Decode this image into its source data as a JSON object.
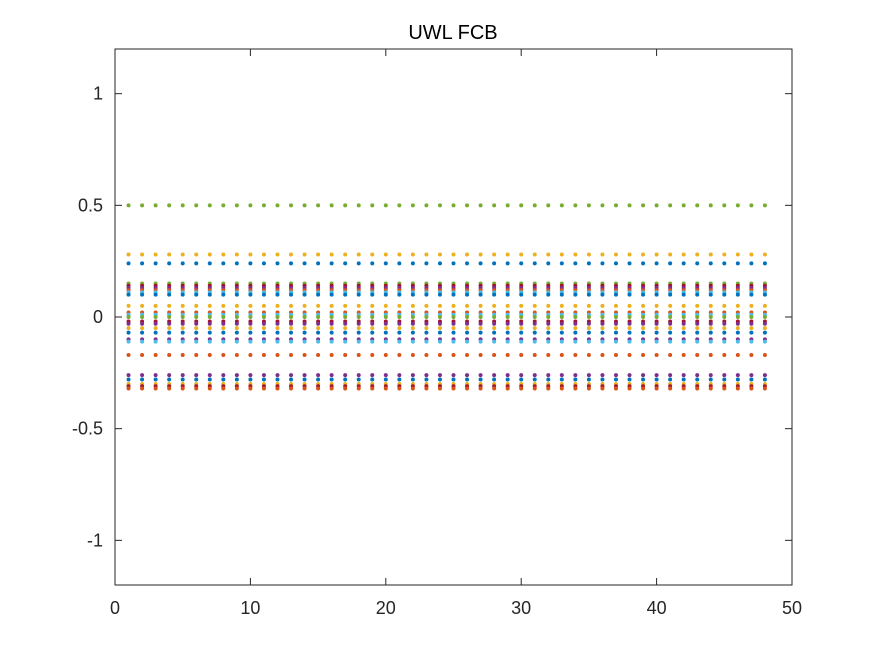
{
  "chart_data": {
    "type": "scatter",
    "title": "UWL FCB",
    "xlabel": "",
    "ylabel": "",
    "xlim": [
      0,
      50
    ],
    "ylim": [
      -1.2,
      1.2
    ],
    "xticks": [
      "0",
      "10",
      "20",
      "30",
      "40",
      "50"
    ],
    "yticks": [
      "-1",
      "-0.5",
      "0",
      "0.5",
      "1"
    ],
    "grid": false,
    "legend": "none",
    "x": [
      1,
      2,
      3,
      4,
      5,
      6,
      7,
      8,
      9,
      10,
      11,
      12,
      13,
      14,
      15,
      16,
      17,
      18,
      19,
      20,
      21,
      22,
      23,
      24,
      25,
      26,
      27,
      28,
      29,
      30,
      31,
      32,
      33,
      34,
      35,
      36,
      37,
      38,
      39,
      40,
      41,
      42,
      43,
      44,
      45,
      46,
      47,
      48
    ],
    "series": [
      {
        "color": "#77AC30",
        "y_constant": 0.5
      },
      {
        "color": "#EDB120",
        "y_constant": 0.28
      },
      {
        "color": "#0072BD",
        "y_constant": 0.24
      },
      {
        "color": "#77AC30",
        "y_constant": 0.15
      },
      {
        "color": "#A2142F",
        "y_constant": 0.14
      },
      {
        "color": "#7E2F8E",
        "y_constant": 0.13
      },
      {
        "color": "#D95319",
        "y_constant": 0.12
      },
      {
        "color": "#4DBEEE",
        "y_constant": 0.11
      },
      {
        "color": "#0072BD",
        "y_constant": 0.1
      },
      {
        "color": "#EDB120",
        "y_constant": 0.05
      },
      {
        "color": "#D95319",
        "y_constant": 0.02
      },
      {
        "color": "#4DBEEE",
        "y_constant": 0.01
      },
      {
        "color": "#77AC30",
        "y_constant": 0.0
      },
      {
        "color": "#A2142F",
        "y_constant": -0.02
      },
      {
        "color": "#7E2F8E",
        "y_constant": -0.03
      },
      {
        "color": "#EDB120",
        "y_constant": -0.05
      },
      {
        "color": "#0072BD",
        "y_constant": -0.07
      },
      {
        "color": "#7E2F8E",
        "y_constant": -0.1
      },
      {
        "color": "#4DBEEE",
        "y_constant": -0.11
      },
      {
        "color": "#D95319",
        "y_constant": -0.17
      },
      {
        "color": "#7E2F8E",
        "y_constant": -0.26
      },
      {
        "color": "#0072BD",
        "y_constant": -0.28
      },
      {
        "color": "#EDB120",
        "y_constant": -0.3
      },
      {
        "color": "#A2142F",
        "y_constant": -0.31
      },
      {
        "color": "#D95319",
        "y_constant": -0.32
      }
    ]
  }
}
